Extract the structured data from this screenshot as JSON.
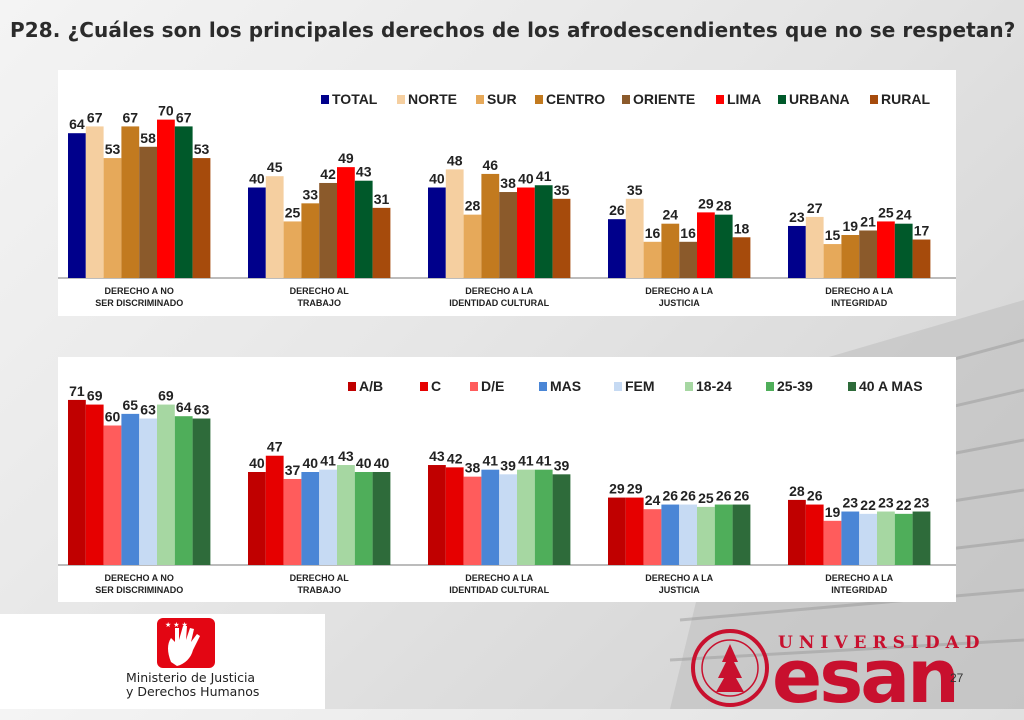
{
  "title": "P28. ¿Cuáles son los principales derechos de los afrodescendientes que no se respetan?",
  "chart_data": [
    {
      "type": "bar",
      "categories": [
        "DERECHO A NO\nSER DISCRIMINADO",
        "DERECHO AL\nTRABAJO",
        "DERECHO A LA\nIDENTIDAD CULTURAL",
        "DERECHO A LA\nJUSTICIA",
        "DERECHO A LA\nINTEGRIDAD"
      ],
      "legend_position": "top",
      "ylim": [
        0,
        80
      ],
      "series": [
        {
          "name": "TOTAL",
          "color": "#00008b",
          "values": [
            64,
            40,
            40,
            26,
            23
          ]
        },
        {
          "name": "NORTE",
          "color": "#f5cfa0",
          "values": [
            67,
            45,
            48,
            35,
            27
          ]
        },
        {
          "name": "SUR",
          "color": "#e6a95a",
          "values": [
            53,
            25,
            28,
            16,
            15
          ]
        },
        {
          "name": "CENTRO",
          "color": "#c27a1f",
          "values": [
            67,
            33,
            46,
            24,
            19
          ]
        },
        {
          "name": "ORIENTE",
          "color": "#8b5a2b",
          "values": [
            58,
            42,
            38,
            16,
            21
          ]
        },
        {
          "name": "LIMA",
          "color": "#ff0000",
          "values": [
            70,
            49,
            40,
            29,
            25
          ]
        },
        {
          "name": "URBANA",
          "color": "#00592a",
          "values": [
            67,
            43,
            41,
            28,
            24
          ]
        },
        {
          "name": "RURAL",
          "color": "#a64b0c",
          "values": [
            53,
            31,
            35,
            18,
            17
          ]
        }
      ]
    },
    {
      "type": "bar",
      "categories": [
        "DERECHO A NO\nSER DISCRIMINADO",
        "DERECHO AL\nTRABAJO",
        "DERECHO A LA\nIDENTIDAD CULTURAL",
        "DERECHO A LA\nJUSTICIA",
        "DERECHO A LA\nINTEGRIDAD"
      ],
      "legend_position": "top",
      "ylim": [
        0,
        80
      ],
      "series": [
        {
          "name": "A/B",
          "color": "#c00000",
          "values": [
            71,
            40,
            43,
            29,
            28
          ]
        },
        {
          "name": "C",
          "color": "#e60000",
          "values": [
            69,
            47,
            42,
            29,
            26
          ]
        },
        {
          "name": "D/E",
          "color": "#ff5c5c",
          "values": [
            60,
            37,
            38,
            24,
            19
          ]
        },
        {
          "name": "MAS",
          "color": "#4a86d6",
          "values": [
            65,
            40,
            41,
            26,
            23
          ]
        },
        {
          "name": "FEM",
          "color": "#c6daf3",
          "values": [
            63,
            41,
            39,
            26,
            22
          ]
        },
        {
          "name": "18-24",
          "color": "#a6d7a2",
          "values": [
            69,
            43,
            41,
            25,
            23
          ]
        },
        {
          "name": "25-39",
          "color": "#4fae5a",
          "values": [
            64,
            40,
            41,
            26,
            22
          ]
        },
        {
          "name": "40 A MAS",
          "color": "#2e6b3a",
          "values": [
            63,
            40,
            39,
            26,
            23
          ]
        }
      ]
    }
  ],
  "footer": {
    "minjus_line1": "Ministerio de Justicia",
    "minjus_line2": "y Derechos Humanos",
    "esan_univ": "UNIVERSIDAD",
    "esan_word": "esan",
    "page_number": "27"
  },
  "colors": {
    "brand_red": "#c8102e",
    "minjus_red": "#e30613"
  }
}
